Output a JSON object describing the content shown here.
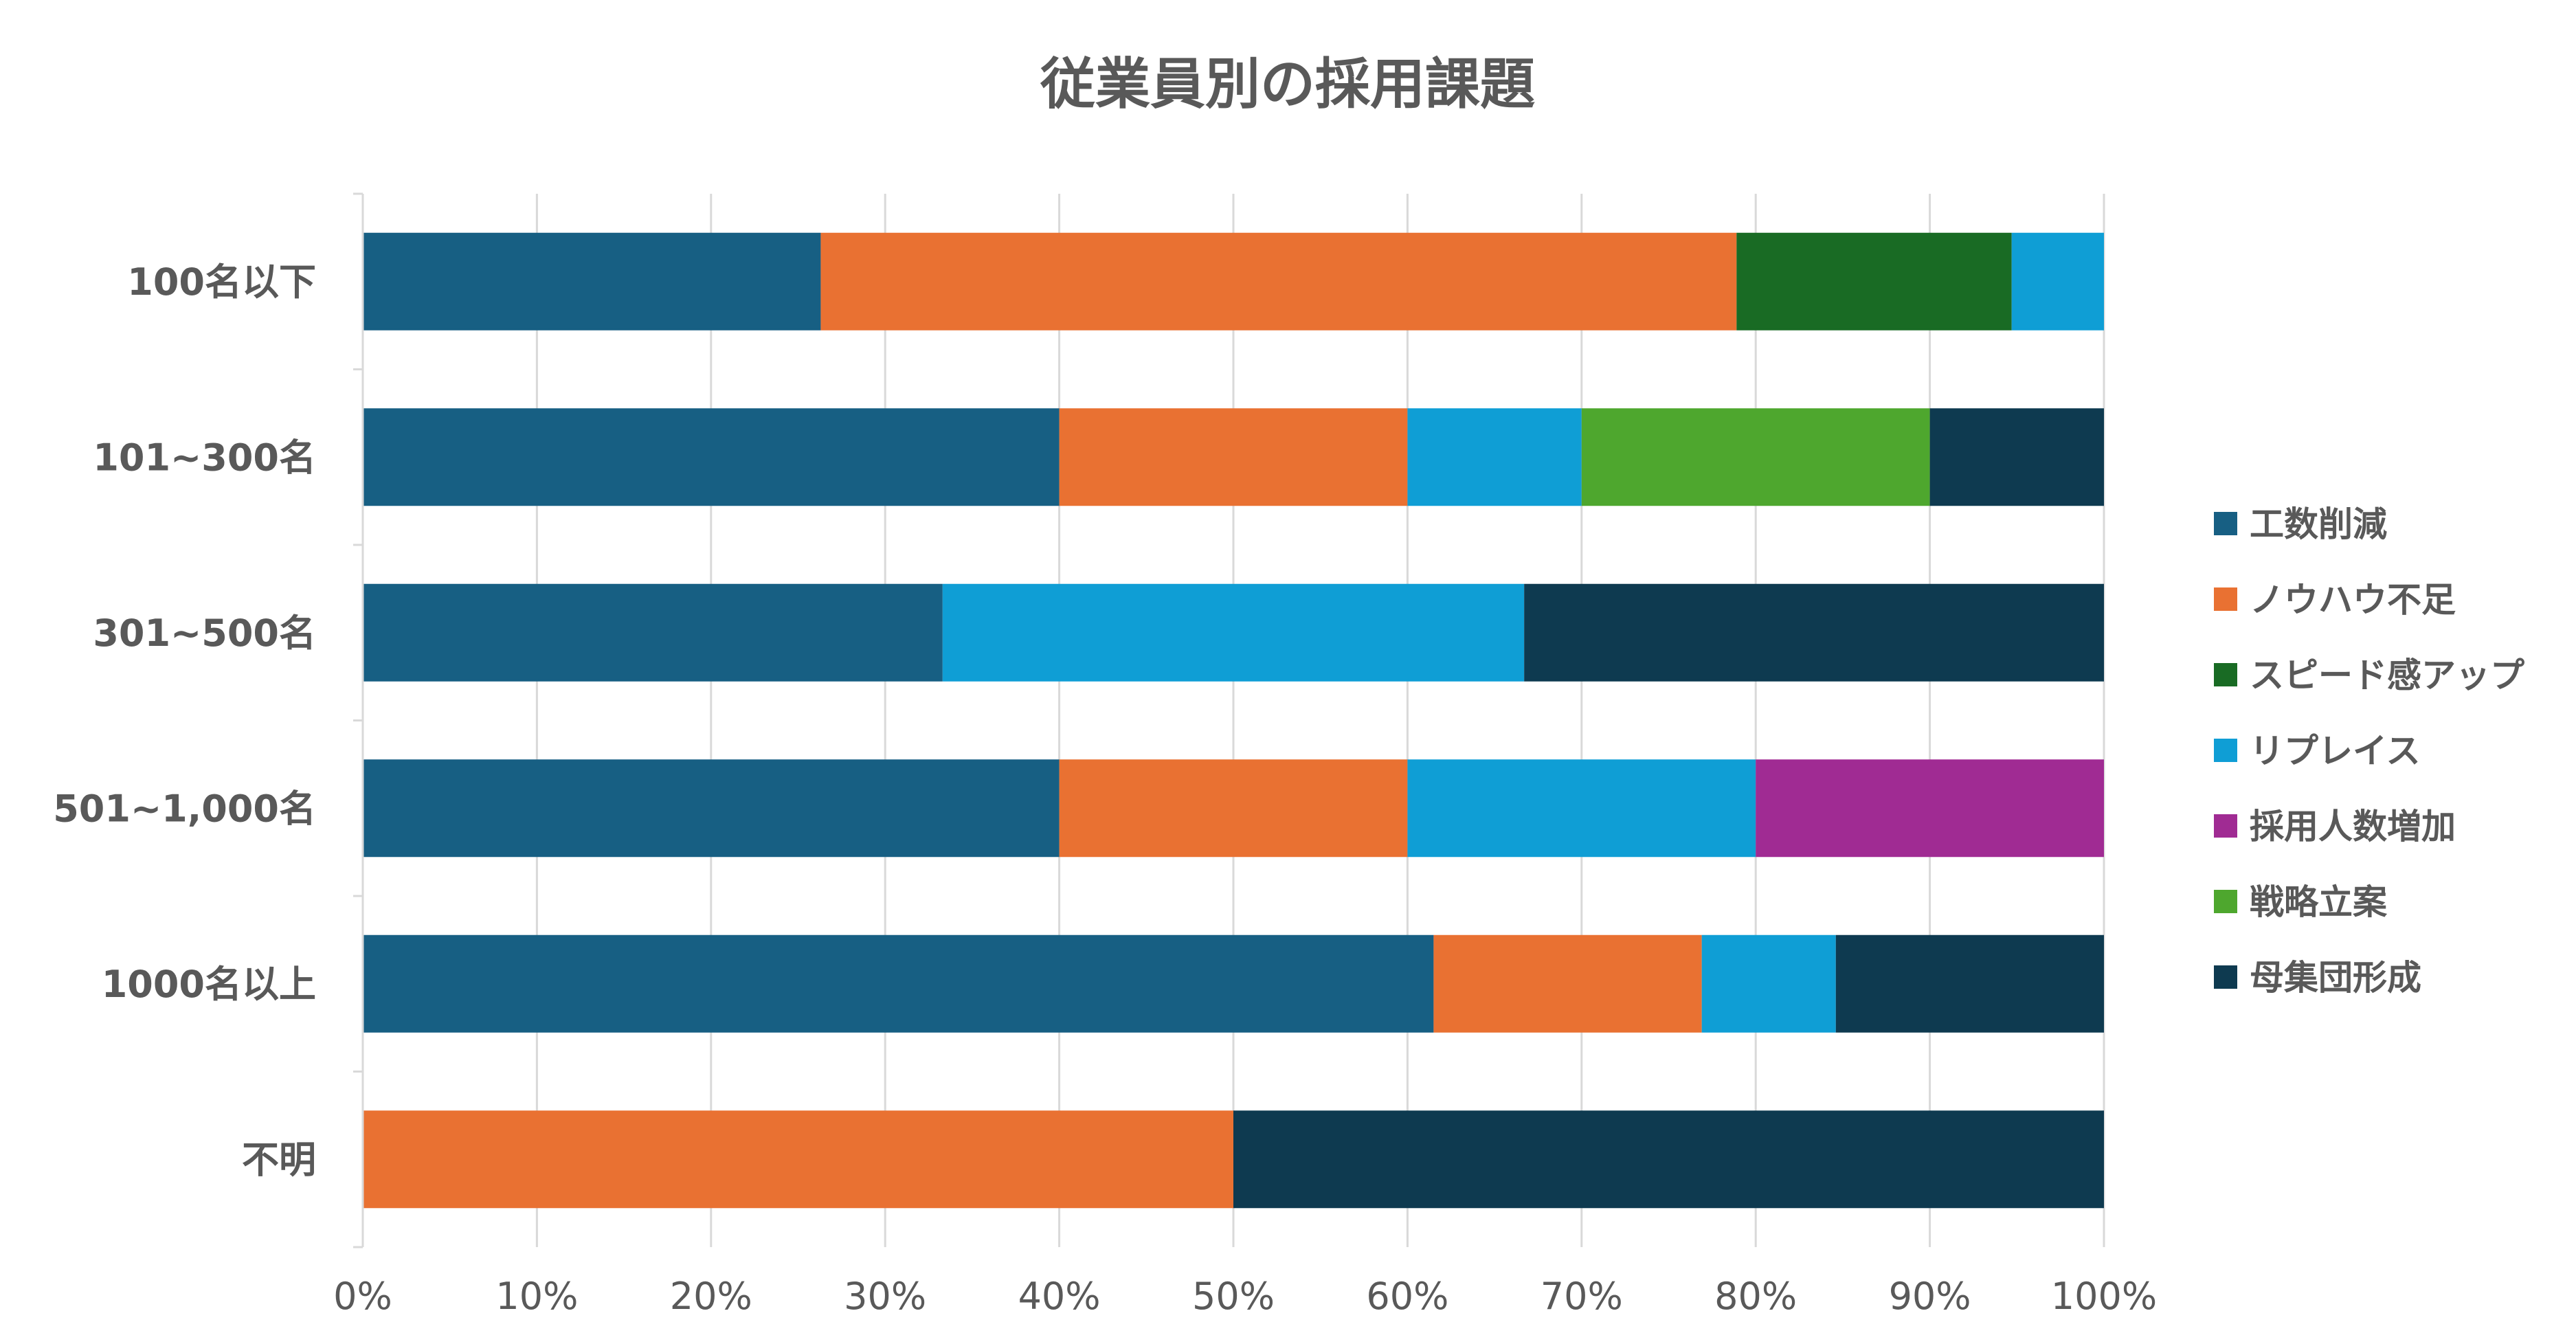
{
  "chart_data": {
    "type": "bar",
    "orientation": "horizontal",
    "stacked": "percent",
    "title": "従業員別の採用課題",
    "xlabel": "",
    "ylabel": "",
    "xlim": [
      0,
      100
    ],
    "x_ticks": [
      "0%",
      "10%",
      "20%",
      "30%",
      "40%",
      "50%",
      "60%",
      "70%",
      "80%",
      "90%",
      "100%"
    ],
    "grid": "vertical",
    "legend_position": "right",
    "categories": [
      "100名以下",
      "101~300名",
      "301~500名",
      "501~1,000名",
      "1000名以上",
      "不明"
    ],
    "series": [
      {
        "name": "工数削減",
        "color": "#175F83",
        "values": [
          26.3,
          40,
          33.3,
          40,
          61.5,
          0
        ]
      },
      {
        "name": "ノウハウ不足",
        "color": "#E97132",
        "values": [
          52.6,
          20,
          0,
          20,
          15.4,
          50
        ]
      },
      {
        "name": "スピード感アップ",
        "color": "#196B24",
        "values": [
          15.8,
          0,
          0,
          0,
          0,
          0
        ]
      },
      {
        "name": "リプレイス",
        "color": "#0F9ED5",
        "values": [
          5.3,
          10,
          33.4,
          20,
          7.7,
          0
        ]
      },
      {
        "name": "採用人数増加",
        "color": "#A02B93",
        "values": [
          0,
          0,
          0,
          20,
          0,
          0
        ]
      },
      {
        "name": "戦略立案",
        "color": "#4EA72E",
        "values": [
          0,
          20,
          0,
          0,
          0,
          0
        ]
      },
      {
        "name": "母集団形成",
        "color": "#0E3A50",
        "values": [
          0,
          10,
          33.3,
          0,
          15.4,
          50
        ]
      }
    ]
  }
}
